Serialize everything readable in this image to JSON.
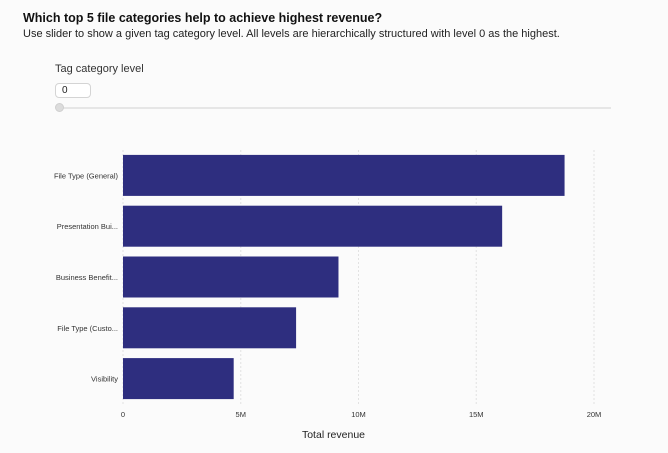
{
  "header": {
    "title": "Which top 5 file categories help to achieve highest revenue?",
    "subtitle": "Use slider to show a given tag category level. All levels are hierarchically structured with level 0 as the highest."
  },
  "control": {
    "label": "Tag category level",
    "value": "0",
    "slider_value": 0
  },
  "colors": {
    "bar": "#2e2e7f",
    "grid": "#e2e2e2",
    "axis_text": "#333333"
  },
  "chart_data": {
    "type": "bar",
    "orientation": "horizontal",
    "title": "",
    "xlabel": "Total revenue",
    "ylabel": "",
    "categories": [
      "File Type (General)",
      "Presentation Bui...",
      "Business Benefit...",
      "File Type (Custo...",
      "Visibility"
    ],
    "values": [
      18750000,
      16100000,
      9150000,
      7350000,
      4700000
    ],
    "xlim": [
      0,
      20000000
    ],
    "xticks": [
      0,
      5000000,
      10000000,
      15000000,
      20000000
    ],
    "xtick_labels": [
      "0",
      "5M",
      "10M",
      "15M",
      "20M"
    ],
    "grid": true
  }
}
